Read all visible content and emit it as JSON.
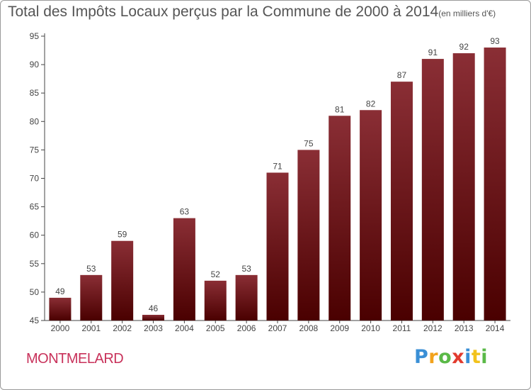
{
  "header": {
    "title": "Total des Impôts Locaux perçus par la Commune de 2000 à 2014",
    "unit": "(en milliers d'€)"
  },
  "commune": "MONTMELARD",
  "brand": {
    "letters": [
      {
        "ch": "P",
        "color": "#3a8fd6"
      },
      {
        "ch": "r",
        "color": "#f2a21c"
      },
      {
        "ch": "o",
        "color": "#5ab947"
      },
      {
        "ch": "x",
        "color": "#e23b2e"
      },
      {
        "ch": "i",
        "color": "#3a8fd6"
      },
      {
        "ch": "t",
        "color": "#f2c21c"
      },
      {
        "ch": "i",
        "color": "#5ab947"
      }
    ]
  },
  "chart_data": {
    "type": "bar",
    "categories": [
      "2000",
      "2001",
      "2002",
      "2003",
      "2004",
      "2005",
      "2006",
      "2007",
      "2008",
      "2009",
      "2010",
      "2011",
      "2012",
      "2013",
      "2014"
    ],
    "values": [
      49,
      53,
      59,
      46,
      63,
      52,
      53,
      71,
      75,
      81,
      82,
      87,
      91,
      92,
      93
    ],
    "title": "Total des Impôts Locaux perçus par la Commune de 2000 à 2014",
    "xlabel": "",
    "ylabel": "",
    "ylim": [
      45,
      95
    ],
    "yticks": [
      45,
      50,
      55,
      60,
      65,
      70,
      75,
      80,
      85,
      90,
      95
    ],
    "grid": false,
    "legend": "none",
    "colors": {
      "bar_top": "#8a2e35",
      "bar_bottom": "#4a0000",
      "axis": "#444444",
      "text": "#444444"
    }
  }
}
